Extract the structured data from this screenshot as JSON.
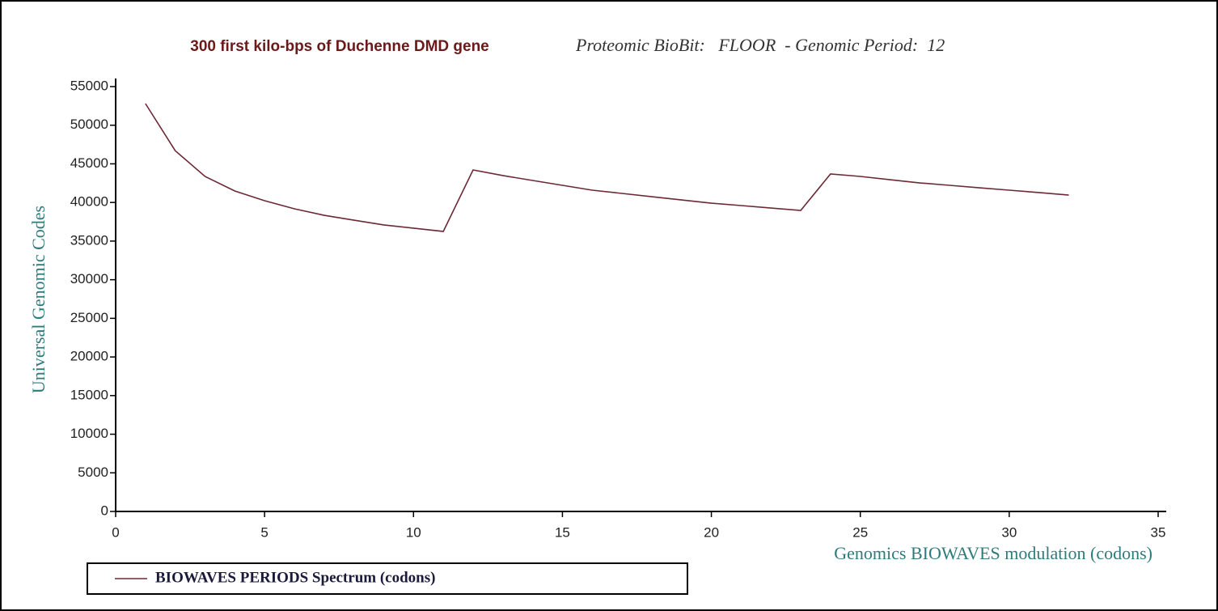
{
  "chart_data": {
    "type": "line",
    "title": "300 first kilo-bps of Duchenne DMD gene",
    "subtitle": "Proteomic BioBit:   FLOOR  - Genomic Period:  12",
    "x_label": "Genomics BIOWAVES modulation (codons)",
    "y_label": "Universal Genomic Codes",
    "x": [
      1,
      2,
      3,
      4,
      5,
      6,
      7,
      8,
      9,
      10,
      11,
      12,
      13,
      14,
      15,
      16,
      17,
      18,
      19,
      20,
      21,
      22,
      23,
      24,
      25,
      26,
      27,
      28,
      29,
      30,
      31,
      32
    ],
    "series": [
      {
        "name": "BIOWAVES PERIODS Spectrum (codons)",
        "color": "#6b2a35",
        "values": [
          52800,
          46700,
          43370,
          41490,
          40230,
          39180,
          38340,
          37710,
          37090,
          36670,
          36250,
          44210,
          43480,
          42850,
          42220,
          41590,
          41170,
          40750,
          40330,
          39910,
          39600,
          39280,
          38970,
          43690,
          43370,
          42950,
          42530,
          42220,
          41900,
          41590,
          41280,
          40960
        ]
      }
    ],
    "xlim": [
      0,
      35
    ],
    "xticks": [
      0,
      5,
      10,
      15,
      20,
      25,
      30,
      35
    ],
    "ylim": [
      0,
      55000
    ],
    "yticks": [
      0,
      5000,
      10000,
      15000,
      20000,
      25000,
      30000,
      35000,
      40000,
      45000,
      50000,
      55000
    ],
    "grid": false,
    "legend": "bottom-left"
  }
}
